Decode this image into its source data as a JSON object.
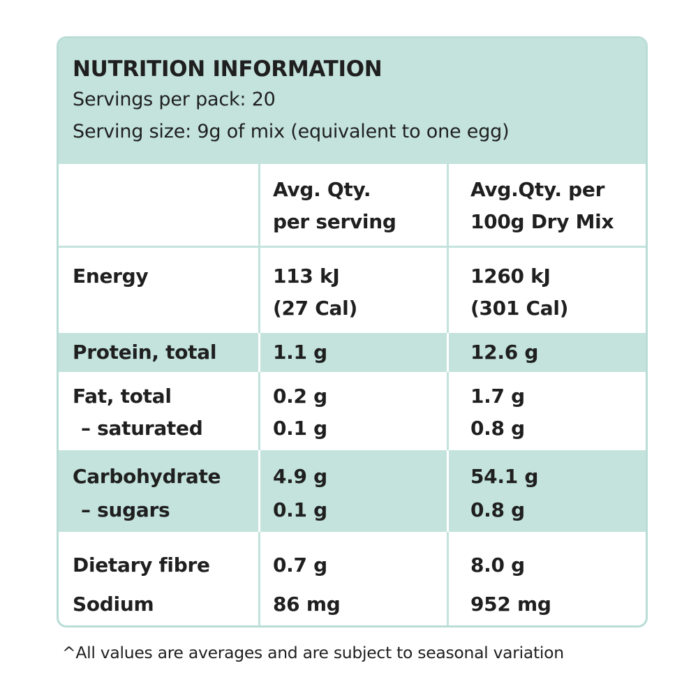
{
  "header": {
    "title": "NUTRITION INFORMATION",
    "servings_per_pack": "Servings per pack: 20",
    "serving_size": "Serving size: 9g of mix (equivalent to one egg)"
  },
  "columns": {
    "per_serving": [
      "Avg. Qty.",
      "per serving"
    ],
    "per_100g": [
      "Avg.Qty. per",
      "100g Dry Mix"
    ]
  },
  "rows": {
    "energy": {
      "label": "Energy",
      "serving": [
        "113 kJ",
        "(27 Cal)"
      ],
      "per100": [
        "1260 kJ",
        "(301 Cal)"
      ]
    },
    "protein": {
      "label": "Protein, total",
      "serving": "1.1 g",
      "per100": "12.6 g"
    },
    "fat": {
      "label": "Fat, total",
      "sublabel": "– saturated",
      "serving": [
        "0.2 g",
        "0.1 g"
      ],
      "per100": [
        "1.7 g",
        "0.8 g"
      ]
    },
    "carbohydrate": {
      "label": "Carbohydrate",
      "sublabel": "– sugars",
      "serving": [
        "4.9 g",
        "0.1 g"
      ],
      "per100": [
        "54.1 g",
        "0.8 g"
      ]
    },
    "fibre_sodium": {
      "labels": [
        "Dietary fibre",
        "Sodium"
      ],
      "serving": [
        "0.7 g",
        "86 mg"
      ],
      "per100": [
        "8.0 g",
        "952 mg"
      ]
    }
  },
  "footnote": "^All values are averages and are subject to seasonal variation"
}
